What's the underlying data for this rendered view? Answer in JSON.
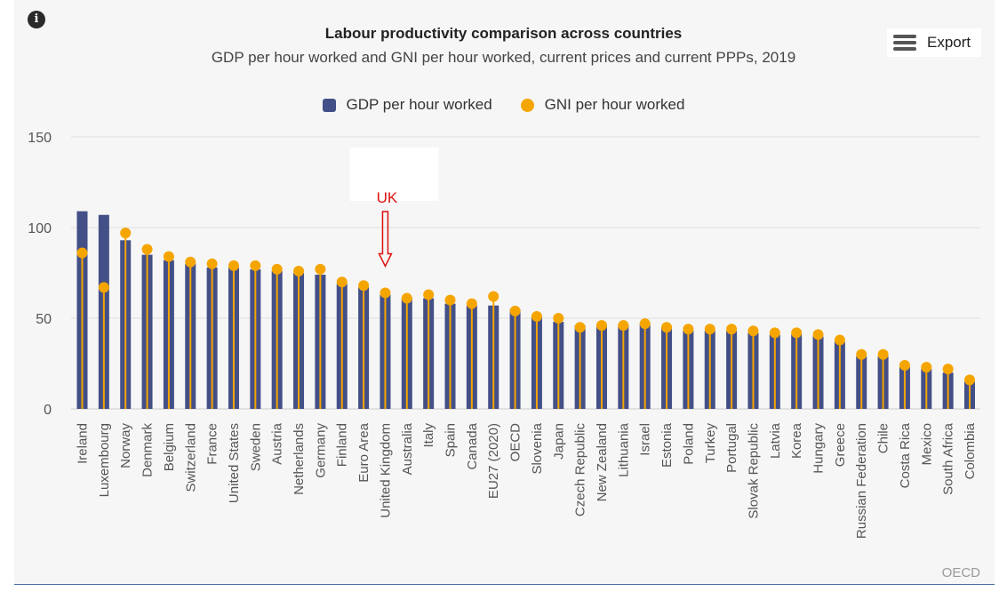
{
  "chart_data": {
    "type": "bar",
    "title": "Labour productivity comparison across countries",
    "subtitle": "GDP per hour worked and GNI per hour worked, current prices and current PPPs, 2019",
    "ylim": [
      0,
      150
    ],
    "yticks": [
      0,
      50,
      100,
      150
    ],
    "categories": [
      "Ireland",
      "Luxembourg",
      "Norway",
      "Denmark",
      "Belgium",
      "Switzerland",
      "France",
      "United States",
      "Sweden",
      "Austria",
      "Netherlands",
      "Germany",
      "Finland",
      "Euro Area",
      "United Kingdom",
      "Australia",
      "Italy",
      "Spain",
      "Canada",
      "EU27 (2020)",
      "OECD",
      "Slovenia",
      "Japan",
      "Czech Republic",
      "New Zealand",
      "Lithuania",
      "Israel",
      "Estonia",
      "Poland",
      "Turkey",
      "Portugal",
      "Slovak Republic",
      "Latvia",
      "Korea",
      "Hungary",
      "Greece",
      "Russian Federation",
      "Chile",
      "Costa Rica",
      "Mexico",
      "South Africa",
      "Colombia"
    ],
    "series": [
      {
        "name": "GDP per hour worked",
        "mark": "bar",
        "color": "#434f87",
        "values": [
          109,
          107,
          93,
          85,
          82,
          80,
          78,
          78,
          77,
          76,
          75,
          74,
          69,
          67,
          63,
          61,
          61,
          58,
          57,
          57,
          55,
          51,
          48,
          46,
          46,
          46,
          47,
          45,
          43,
          43,
          43,
          42,
          41,
          41,
          40,
          37,
          29,
          29,
          23,
          22,
          20,
          15
        ]
      },
      {
        "name": "GNI per hour worked",
        "mark": "dot",
        "color": "#f5a500",
        "values": [
          86,
          67,
          97,
          88,
          84,
          81,
          80,
          79,
          79,
          77,
          76,
          77,
          70,
          68,
          64,
          61,
          63,
          60,
          58,
          62,
          54,
          51,
          50,
          45,
          46,
          46,
          47,
          45,
          44,
          44,
          44,
          43,
          42,
          42,
          41,
          38,
          30,
          30,
          24,
          23,
          22,
          16
        ]
      }
    ],
    "annotation": {
      "text": "UK",
      "target": "United Kingdom"
    }
  },
  "legend": {
    "gdp_label": "GDP per hour worked",
    "gni_label": "GNI per hour worked"
  },
  "ui": {
    "export_label": "Export",
    "info_glyph": "i",
    "credit": "OECD"
  },
  "colors": {
    "gdp": "#434f87",
    "gni": "#f5a500",
    "annotation": "#dd1111"
  }
}
